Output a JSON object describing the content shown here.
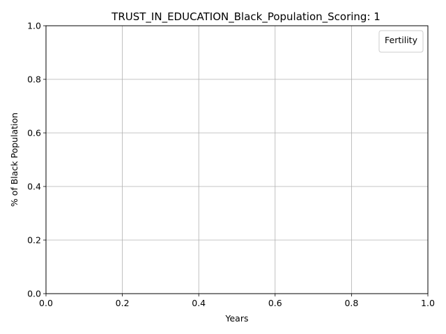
{
  "chart_data": {
    "type": "line",
    "title": "TRUST_IN_EDUCATION_Black_Population_Scoring: 1",
    "xlabel": "Years",
    "ylabel": "% of Black Population",
    "xlim": [
      0,
      1
    ],
    "ylim": [
      0,
      1
    ],
    "xticks": [
      "0.0",
      "0.2",
      "0.4",
      "0.6",
      "0.8",
      "1.0"
    ],
    "yticks": [
      "0.0",
      "0.2",
      "0.4",
      "0.6",
      "0.8",
      "1.0"
    ],
    "grid": true,
    "legend": {
      "title": "Fertility",
      "placement": "top-right",
      "entries": []
    },
    "series": []
  }
}
